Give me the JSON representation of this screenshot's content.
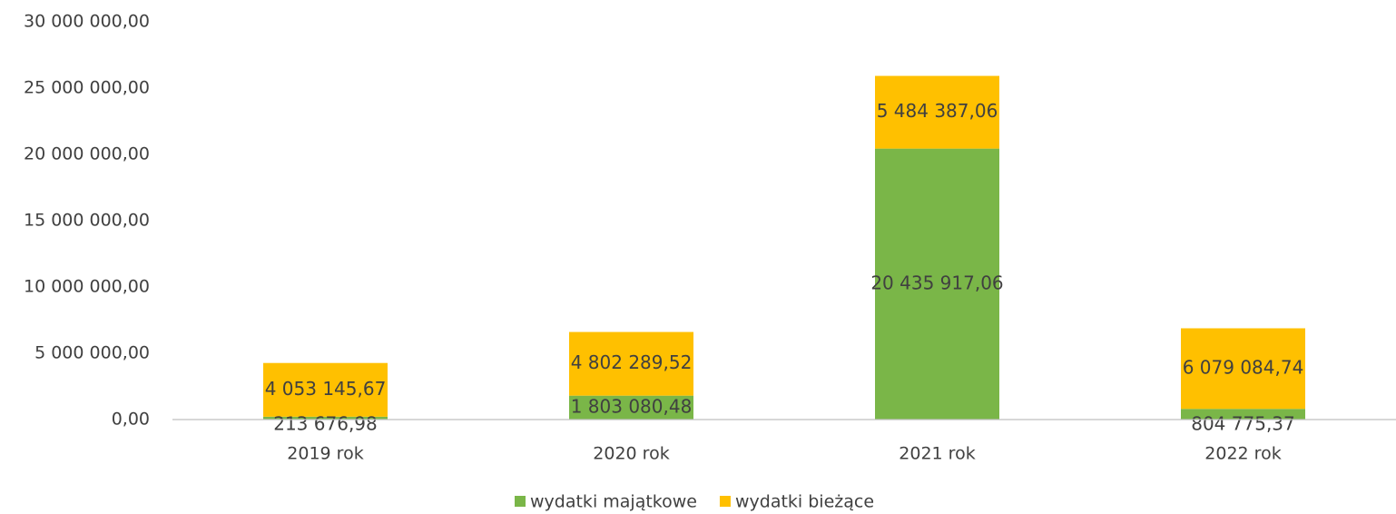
{
  "chart_data": {
    "type": "bar",
    "stacked": true,
    "categories": [
      "2019 rok",
      "2020 rok",
      "2021 rok",
      "2022 rok"
    ],
    "series": [
      {
        "name": "wydatki majątkowe",
        "color": "#7ab648",
        "values": [
          213676.98,
          1803080.48,
          20435917.06,
          804775.37
        ],
        "value_labels": [
          "213 676,98",
          "1 803 080,48",
          "20 435 917,06",
          "804 775,37"
        ]
      },
      {
        "name": "wydatki bieżące",
        "color": "#ffc000",
        "values": [
          4053145.67,
          4802289.52,
          5484387.06,
          6079084.74
        ],
        "value_labels": [
          "4 053 145,67",
          "4 802 289,52",
          "5 484 387,06",
          "6 079 084,74"
        ]
      }
    ],
    "ylim": [
      0,
      30000000
    ],
    "yticks": [
      {
        "value": 0,
        "label": "0,00"
      },
      {
        "value": 5000000,
        "label": "5 000 000,00"
      },
      {
        "value": 10000000,
        "label": "10 000 000,00"
      },
      {
        "value": 15000000,
        "label": "15 000 000,00"
      },
      {
        "value": 20000000,
        "label": "20 000 000,00"
      },
      {
        "value": 25000000,
        "label": "25 000 000,00"
      },
      {
        "value": 30000000,
        "label": "30 000 000,00"
      }
    ],
    "grid": false,
    "legend": "bottom"
  }
}
